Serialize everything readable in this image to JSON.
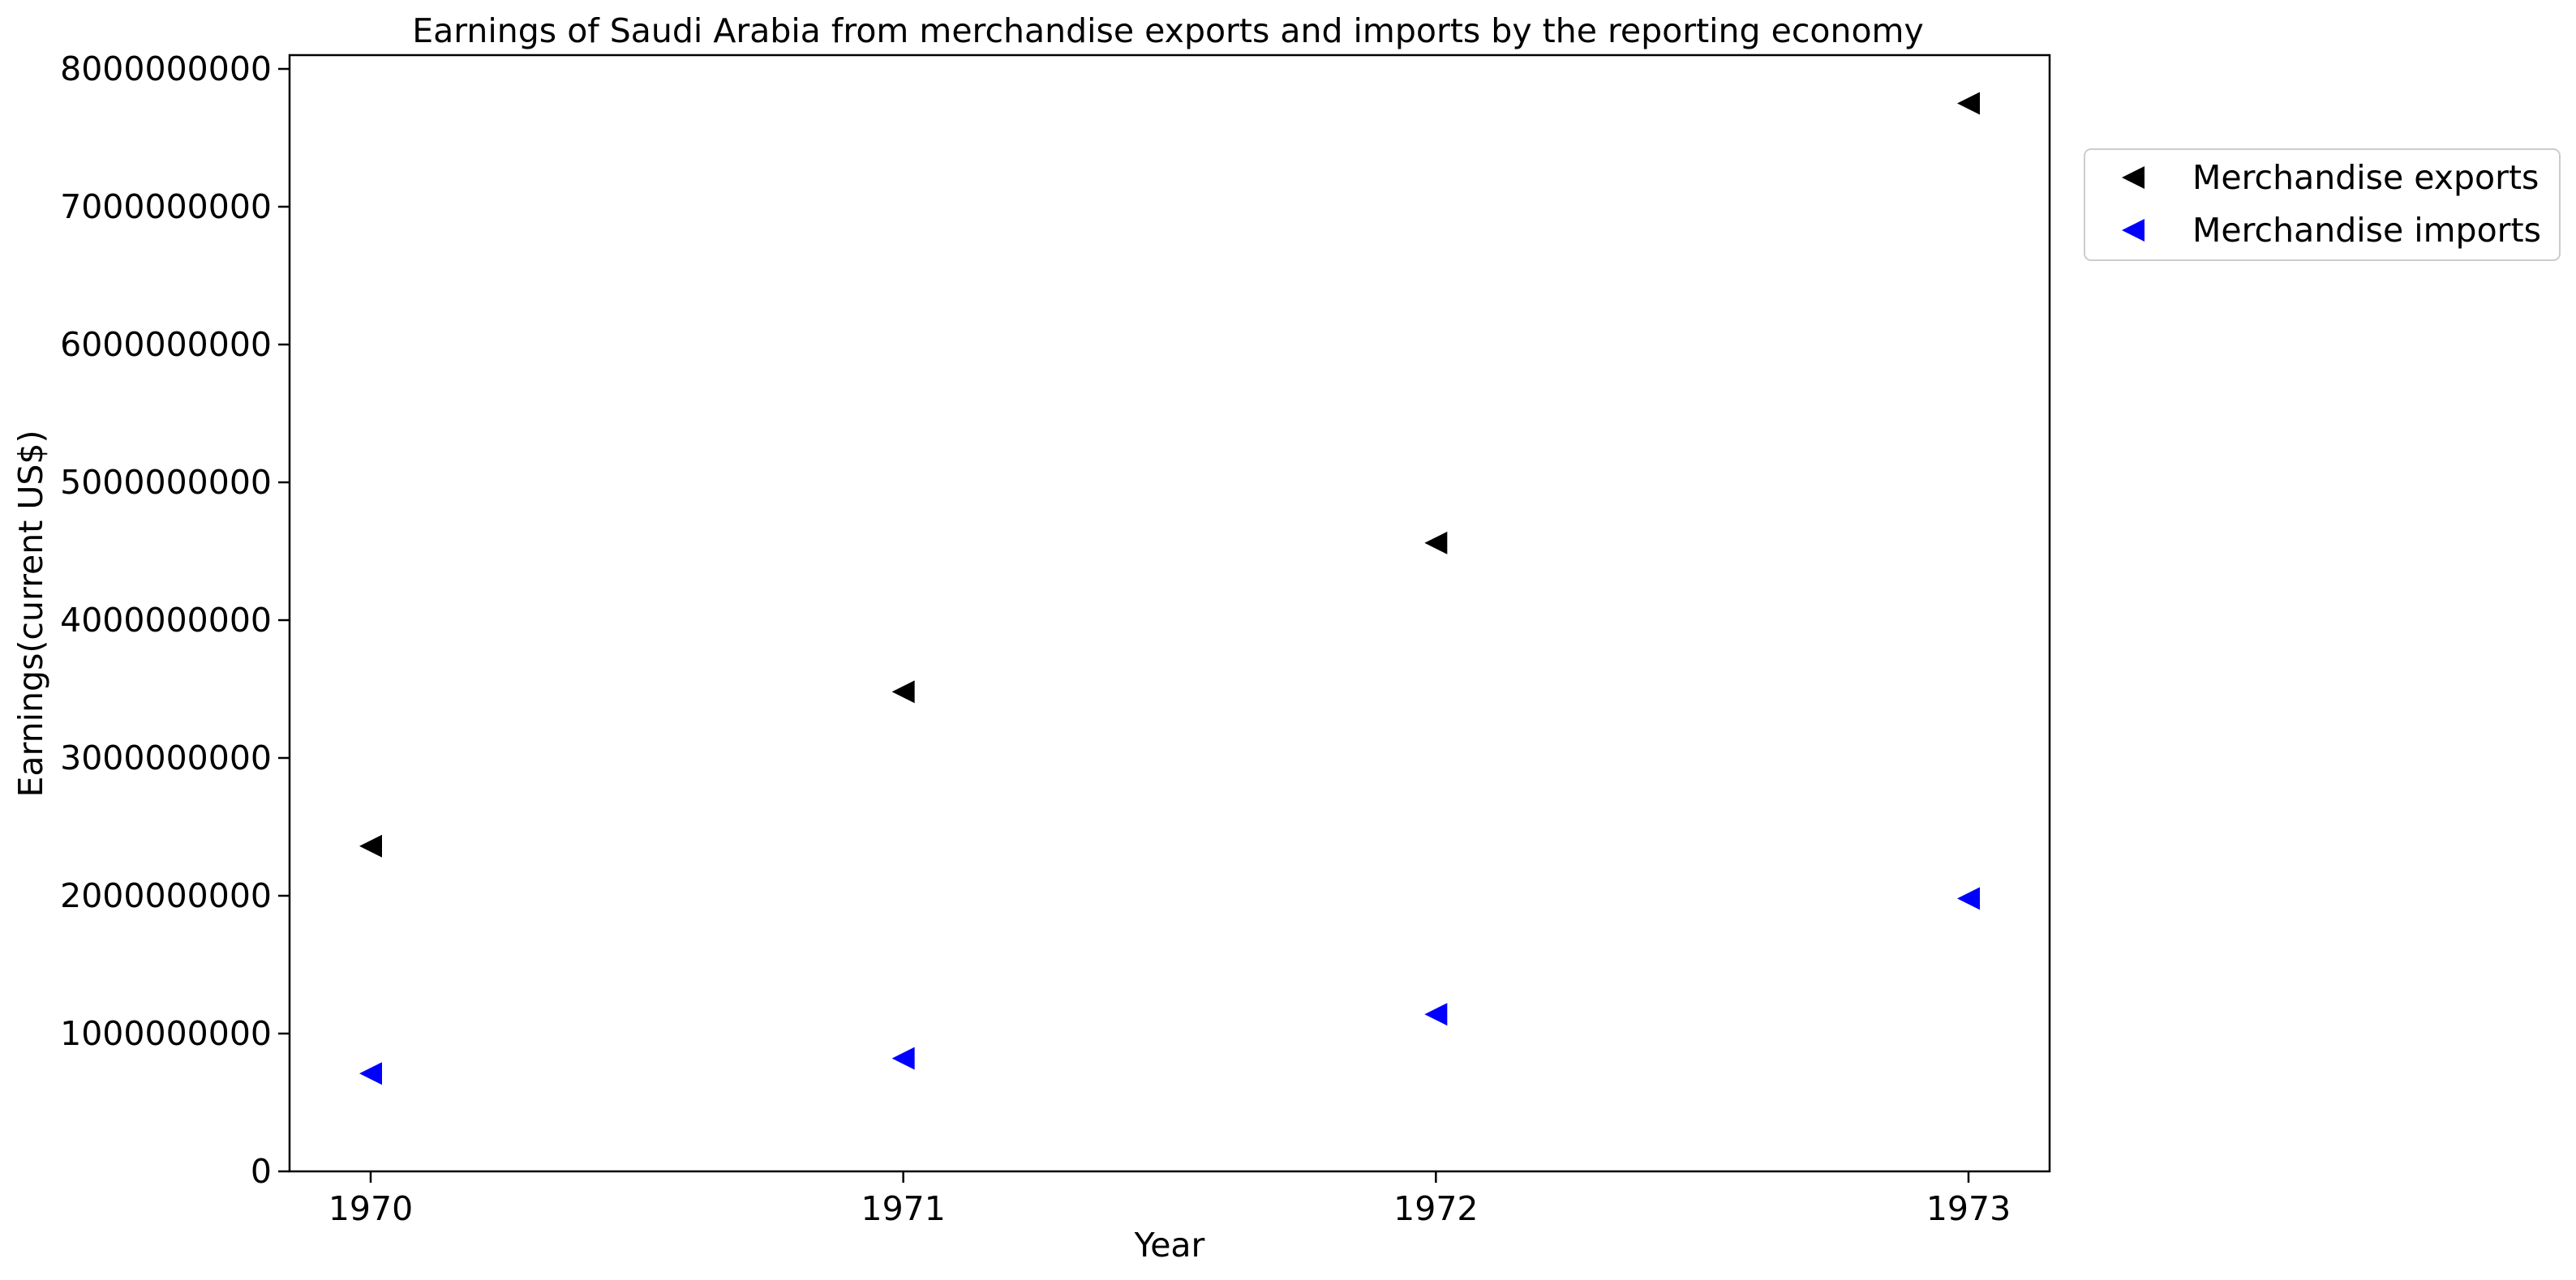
{
  "chart_data": {
    "type": "scatter",
    "title": "Earnings of Saudi Arabia from merchandise exports and imports by the reporting economy",
    "xlabel": "Year",
    "ylabel": "Earnings(current US$)",
    "x": [
      "1970",
      "1971",
      "1972",
      "1973"
    ],
    "x_ticks": [
      "1970",
      "1971",
      "1972",
      "1973"
    ],
    "y_ticks": [
      "0",
      "1000000000",
      "2000000000",
      "3000000000",
      "4000000000",
      "5000000000",
      "6000000000",
      "7000000000",
      "8000000000"
    ],
    "ylim": [
      0,
      8100000000
    ],
    "grid": false,
    "legend_position": "outside-top-right",
    "marker": "triangle-left",
    "series": [
      {
        "name": "Merchandise exports",
        "color": "#000000",
        "values": [
          2360000000,
          3480000000,
          4560000000,
          7750000000
        ]
      },
      {
        "name": "Merchandise imports",
        "color": "#0000ff",
        "values": [
          710000000,
          820000000,
          1140000000,
          1980000000
        ]
      }
    ]
  }
}
